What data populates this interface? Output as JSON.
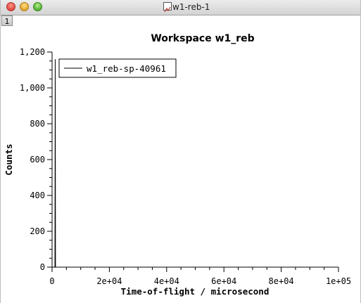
{
  "window": {
    "title": "w1-reb-1",
    "tab_label": "1"
  },
  "chart_data": {
    "type": "line",
    "title": "Workspace w1_reb",
    "xlabel": "Time-of-flight / microsecond",
    "ylabel": "Counts",
    "xlim": [
      0,
      100000
    ],
    "ylim": [
      0,
      1200
    ],
    "x_ticks": [
      {
        "value": 0,
        "label": "0"
      },
      {
        "value": 20000,
        "label": "2e+04"
      },
      {
        "value": 40000,
        "label": "4e+04"
      },
      {
        "value": 60000,
        "label": "6e+04"
      },
      {
        "value": 80000,
        "label": "8e+04"
      },
      {
        "value": 100000,
        "label": "1e+05"
      }
    ],
    "y_ticks": [
      {
        "value": 0,
        "label": "0"
      },
      {
        "value": 200,
        "label": "200"
      },
      {
        "value": 400,
        "label": "400"
      },
      {
        "value": 600,
        "label": "600"
      },
      {
        "value": 800,
        "label": "800"
      },
      {
        "value": 1000,
        "label": "1,000"
      },
      {
        "value": 1200,
        "label": "1,200"
      }
    ],
    "series": [
      {
        "name": "w1_reb-sp-40961",
        "color": "#000000",
        "x": [
          0,
          1000,
          1100,
          1200,
          1300,
          1500,
          2000,
          5000,
          20000,
          50000,
          80000,
          100000
        ],
        "y": [
          0,
          0,
          1160,
          0,
          0,
          0,
          0,
          0,
          0,
          0,
          0,
          0
        ]
      }
    ],
    "legend_placement": "top-left",
    "grid": false
  }
}
